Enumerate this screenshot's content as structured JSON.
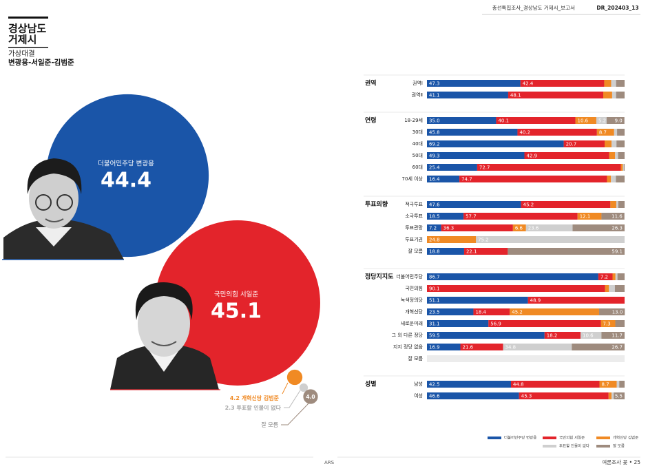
{
  "header": {
    "report": "총선특집조사_경상남도 거제시_보고서",
    "code": "DR_202403_13"
  },
  "title": [
    "경상남도",
    "거제시"
  ],
  "subtitle": "가상대결",
  "matchup": "변광용-서일준-김범준",
  "footer": {
    "method": "ARS",
    "brand": "여론조사 꽃 • 25"
  },
  "chart_data": [
    {
      "type": "bubble",
      "categories": [
        "더불어민주당 변광용",
        "국민의힘 서일준",
        "개혁신당 김범준",
        "투표할 인물이 없다",
        "잘 모름"
      ],
      "values": [
        44.4,
        45.1,
        4.2,
        2.3,
        4.0
      ],
      "value_labels": [
        "44.4",
        "45.1",
        "4.2",
        "2.3",
        "4.0"
      ],
      "colors": [
        "#1a55a8",
        "#e3242b",
        "#f08a24",
        "#cfcfcf",
        "#9e8b7e"
      ]
    },
    {
      "type": "bar",
      "orientation": "horizontal",
      "stacked": true,
      "xlim": [
        0,
        100
      ],
      "groups": [
        {
          "name": "권역",
          "categories": [
            "권역Ⅰ",
            "권역Ⅱ"
          ]
        },
        {
          "name": "연령",
          "categories": [
            "18-29세",
            "30대",
            "40대",
            "50대",
            "60대",
            "70세 이상"
          ]
        },
        {
          "name": "투표의향",
          "categories": [
            "적극투표",
            "소극투표",
            "투표관망",
            "투표기권",
            "잘 모름"
          ]
        },
        {
          "name": "정당지지도",
          "categories": [
            "더불어민주당",
            "국민의힘",
            "녹색정의당",
            "개혁신당",
            "새로운미래",
            "그 외 다른 정당",
            "지지 정당 없음",
            "잘 모름"
          ]
        },
        {
          "name": "성별",
          "categories": [
            "남성",
            "여성"
          ]
        }
      ],
      "series": [
        {
          "name": "더불어민주당 변광용",
          "color": "#1a55a8",
          "values": [
            47.3,
            41.1,
            35.0,
            45.8,
            69.2,
            49.3,
            25.4,
            16.4,
            47.6,
            18.5,
            7.2,
            null,
            18.8,
            86.7,
            null,
            51.1,
            23.5,
            31.1,
            59.5,
            16.9,
            null,
            42.5,
            46.6
          ],
          "value_labels": [
            "47.3",
            "41.1",
            "35.0",
            "45.8",
            "69.2",
            "49.3",
            "25.4",
            "16.4",
            "47.6",
            "18.5",
            "7.2",
            null,
            "18.8",
            "86.7",
            null,
            "51.1",
            "23.5",
            "31.1",
            "59.5",
            "16.9",
            null,
            "42.5",
            "46.6"
          ]
        },
        {
          "name": "국민의힘 서일준",
          "color": "#e3242b",
          "values": [
            42.4,
            48.1,
            40.1,
            40.2,
            20.7,
            42.9,
            72.7,
            74.7,
            45.2,
            57.7,
            36.3,
            null,
            22.1,
            7.2,
            90.1,
            48.9,
            18.4,
            56.9,
            18.2,
            21.6,
            null,
            44.8,
            45.3
          ],
          "value_labels": [
            "42.4",
            "48.1",
            "40.1",
            "40.2",
            "20.7",
            "42.9",
            "72.7",
            "74.7",
            "45.2",
            "57.7",
            "36.3",
            null,
            "22.1",
            "7.2",
            "90.1",
            "48.9",
            "18.4",
            "56.9",
            "18.2",
            "21.6",
            null,
            "44.8",
            "45.3"
          ]
        },
        {
          "name": "개혁신당 김범준",
          "color": "#f08a24",
          "values": [
            3.5,
            4.5,
            10.6,
            8.7,
            3.5,
            3.0,
            1.0,
            2.0,
            3.0,
            12.1,
            6.6,
            24.8,
            null,
            1.5,
            2.0,
            null,
            45.2,
            7.3,
            null,
            null,
            null,
            8.7,
            1.5
          ],
          "value_labels": [
            null,
            null,
            "10.6",
            "8.7",
            null,
            null,
            null,
            null,
            null,
            "12.1",
            "6.6",
            "24.8",
            null,
            null,
            null,
            null,
            "45.2",
            "7.3",
            null,
            null,
            null,
            "8.7",
            null
          ]
        },
        {
          "name": "투표할 인물이 없다",
          "color": "#cfcfcf",
          "values": [
            2.5,
            2.0,
            5.2,
            1.5,
            2.5,
            1.5,
            0.5,
            2.5,
            1.0,
            null,
            23.6,
            75.2,
            null,
            1.0,
            3.0,
            null,
            null,
            null,
            10.6,
            34.8,
            null,
            1.3,
            1.1
          ],
          "value_labels": [
            null,
            null,
            "5.2",
            null,
            null,
            null,
            null,
            null,
            null,
            null,
            "23.6",
            "75.2",
            null,
            null,
            null,
            null,
            null,
            null,
            "10.6",
            "34.8",
            null,
            null,
            null
          ]
        },
        {
          "name": "잘 모름",
          "color": "#9e8b7e",
          "values": [
            4.3,
            4.3,
            9.0,
            3.8,
            4.1,
            3.3,
            0.4,
            4.4,
            3.2,
            11.6,
            26.3,
            null,
            59.1,
            3.6,
            4.9,
            null,
            13.0,
            4.7,
            11.7,
            26.7,
            null,
            2.7,
            5.5
          ],
          "value_labels": [
            null,
            null,
            "9.0",
            null,
            null,
            null,
            null,
            null,
            null,
            "11.6",
            "26.3",
            null,
            "59.1",
            null,
            null,
            null,
            "13.0",
            null,
            "11.7",
            "26.7",
            null,
            null,
            "5.5"
          ]
        }
      ]
    }
  ]
}
